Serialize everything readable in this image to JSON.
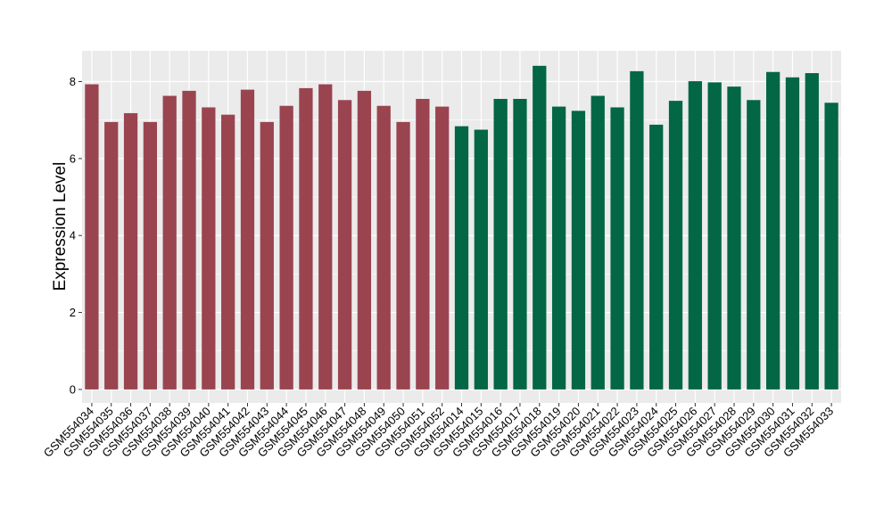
{
  "chart_data": {
    "type": "bar",
    "ylabel": "Expression Level",
    "xlabel": "",
    "ylim": [
      -0.35,
      8.8
    ],
    "yticks": [
      0,
      2,
      4,
      6,
      8
    ],
    "grid": true,
    "panel_background": "#ebebeb",
    "grid_color": "#ffffff",
    "categories": [
      "GSM554034",
      "GSM554035",
      "GSM554036",
      "GSM554037",
      "GSM554038",
      "GSM554039",
      "GSM554040",
      "GSM554041",
      "GSM554042",
      "GSM554043",
      "GSM554044",
      "GSM554045",
      "GSM554046",
      "GSM554047",
      "GSM554048",
      "GSM554049",
      "GSM554050",
      "GSM554051",
      "GSM554052",
      "GSM554014",
      "GSM554015",
      "GSM554016",
      "GSM554017",
      "GSM554018",
      "GSM554019",
      "GSM554020",
      "GSM554021",
      "GSM554022",
      "GSM554023",
      "GSM554024",
      "GSM554025",
      "GSM554026",
      "GSM554027",
      "GSM554028",
      "GSM554029",
      "GSM554030",
      "GSM554031",
      "GSM554032",
      "GSM554033"
    ],
    "values": [
      7.93,
      6.95,
      7.18,
      6.95,
      7.63,
      7.76,
      7.33,
      7.14,
      7.79,
      6.95,
      7.37,
      7.83,
      7.93,
      7.52,
      7.76,
      7.37,
      6.95,
      7.55,
      7.35,
      6.84,
      6.75,
      7.55,
      7.55,
      8.41,
      7.35,
      7.24,
      7.63,
      7.33,
      8.27,
      6.88,
      7.5,
      8.01,
      7.98,
      7.87,
      7.52,
      8.25,
      8.11,
      8.22,
      7.45
    ],
    "group_colors": [
      "#9a4450",
      "#036645"
    ],
    "groups": [
      0,
      0,
      0,
      0,
      0,
      0,
      0,
      0,
      0,
      0,
      0,
      0,
      0,
      0,
      0,
      0,
      0,
      0,
      0,
      1,
      1,
      1,
      1,
      1,
      1,
      1,
      1,
      1,
      1,
      1,
      1,
      1,
      1,
      1,
      1,
      1,
      1,
      1,
      1
    ]
  }
}
